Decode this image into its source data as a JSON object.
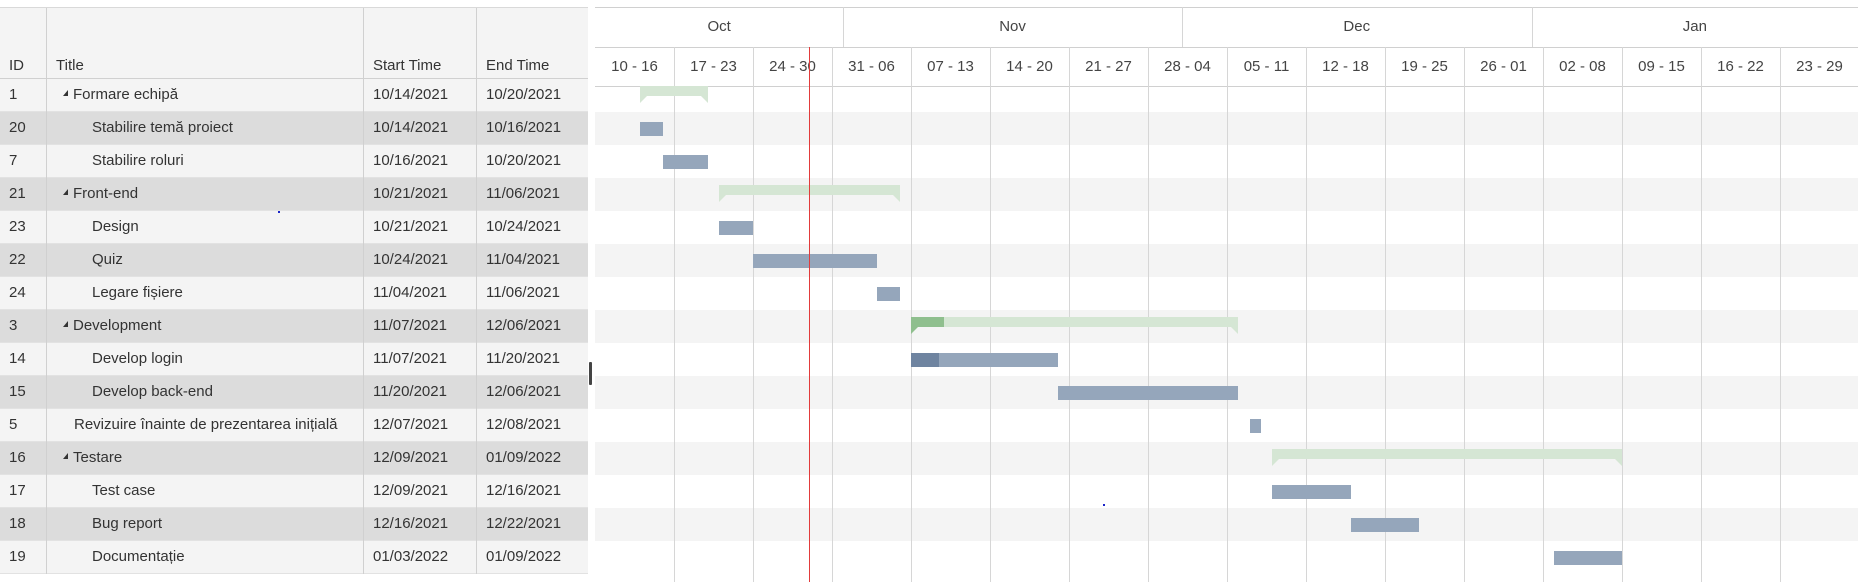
{
  "grid": {
    "columns": [
      {
        "key": "id",
        "label": "ID"
      },
      {
        "key": "title",
        "label": "Title"
      },
      {
        "key": "start",
        "label": "Start Time"
      },
      {
        "key": "end",
        "label": "End Time"
      }
    ],
    "rows": [
      {
        "id": "1",
        "title": "Formare echipă",
        "start": "10/14/2021",
        "end": "10/20/2021",
        "parent": true
      },
      {
        "id": "20",
        "title": "Stabilire temă proiect",
        "start": "10/14/2021",
        "end": "10/16/2021",
        "parent": false
      },
      {
        "id": "7",
        "title": "Stabilire roluri",
        "start": "10/16/2021",
        "end": "10/20/2021",
        "parent": false
      },
      {
        "id": "21",
        "title": "Front-end",
        "start": "10/21/2021",
        "end": "11/06/2021",
        "parent": true
      },
      {
        "id": "23",
        "title": "Design",
        "start": "10/21/2021",
        "end": "10/24/2021",
        "parent": false
      },
      {
        "id": "22",
        "title": "Quiz",
        "start": "10/24/2021",
        "end": "11/04/2021",
        "parent": false
      },
      {
        "id": "24",
        "title": "Legare fișiere",
        "start": "11/04/2021",
        "end": "11/06/2021",
        "parent": false
      },
      {
        "id": "3",
        "title": "Development",
        "start": "11/07/2021",
        "end": "12/06/2021",
        "parent": true
      },
      {
        "id": "14",
        "title": "Develop login",
        "start": "11/07/2021",
        "end": "11/20/2021",
        "parent": false
      },
      {
        "id": "15",
        "title": "Develop back-end",
        "start": "11/20/2021",
        "end": "12/06/2021",
        "parent": false
      },
      {
        "id": "5",
        "title": "Revizuire înainte de prezentarea inițială",
        "start": "12/07/2021",
        "end": "12/08/2021",
        "parent": null
      },
      {
        "id": "16",
        "title": "Testare",
        "start": "12/09/2021",
        "end": "01/09/2022",
        "parent": true
      },
      {
        "id": "17",
        "title": "Test case",
        "start": "12/09/2021",
        "end": "12/16/2021",
        "parent": false
      },
      {
        "id": "18",
        "title": "Bug report",
        "start": "12/16/2021",
        "end": "12/22/2021",
        "parent": false
      },
      {
        "id": "19",
        "title": "Documentație",
        "start": "01/03/2022",
        "end": "01/09/2022",
        "parent": false
      }
    ]
  },
  "timeline": {
    "months": [
      "Oct",
      "Nov",
      "Dec",
      "Jan"
    ],
    "weeks": [
      "10 - 16",
      "17 - 23",
      "24 - 30",
      "31 - 06",
      "07 - 13",
      "14 - 20",
      "21 - 27",
      "28 - 04",
      "05 - 11",
      "12 - 18",
      "19 - 25",
      "26 - 01",
      "02 - 08",
      "09 - 15",
      "16 - 22",
      "23 - 29"
    ],
    "start_date": "2021-10-10",
    "today": "2021-10-29"
  },
  "tasks": [
    {
      "type": "summary",
      "start": "2021-10-14",
      "end": "2021-10-20",
      "progress": 0
    },
    {
      "type": "task",
      "start": "2021-10-14",
      "end": "2021-10-16",
      "progress": 0
    },
    {
      "type": "task",
      "start": "2021-10-16",
      "end": "2021-10-20",
      "progress": 0
    },
    {
      "type": "summary",
      "start": "2021-10-21",
      "end": "2021-11-06",
      "progress": 0
    },
    {
      "type": "task",
      "start": "2021-10-21",
      "end": "2021-10-24",
      "progress": 0
    },
    {
      "type": "task",
      "start": "2021-10-24",
      "end": "2021-11-04",
      "progress": 0
    },
    {
      "type": "task",
      "start": "2021-11-04",
      "end": "2021-11-06",
      "progress": 0
    },
    {
      "type": "summary",
      "start": "2021-11-07",
      "end": "2021-12-06",
      "progress": 0.1
    },
    {
      "type": "task",
      "start": "2021-11-07",
      "end": "2021-11-20",
      "progress": 0.19
    },
    {
      "type": "task",
      "start": "2021-11-20",
      "end": "2021-12-06",
      "progress": 0
    },
    {
      "type": "task",
      "start": "2021-12-07",
      "end": "2021-12-08",
      "progress": 0
    },
    {
      "type": "summary",
      "start": "2021-12-09",
      "end": "2022-01-09",
      "progress": 0
    },
    {
      "type": "task",
      "start": "2021-12-09",
      "end": "2021-12-16",
      "progress": 0
    },
    {
      "type": "task",
      "start": "2021-12-16",
      "end": "2021-12-22",
      "progress": 0
    },
    {
      "type": "task",
      "start": "2022-01-03",
      "end": "2022-01-09",
      "progress": 0
    }
  ]
}
